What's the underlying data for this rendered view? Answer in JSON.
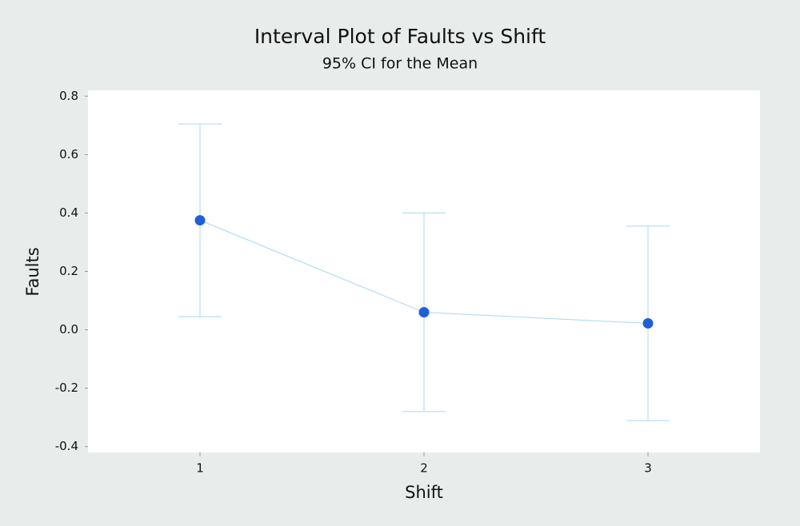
{
  "chart_data": {
    "type": "interval",
    "title": "Interval Plot of Faults vs Shift",
    "subtitle": "95% CI for the Mean",
    "x_label": "Shift",
    "y_label": "Faults",
    "categories": [
      "1",
      "2",
      "3"
    ],
    "values": [
      0.375,
      0.06,
      0.022
    ],
    "errors": [
      0.33,
      0.34,
      0.333
    ],
    "color": "#1f5fd6",
    "line_color": "#a9d8ec",
    "ylim": [
      -0.42,
      0.82
    ],
    "yticks": [
      -0.4,
      -0.2,
      {
        "value": 0,
        "label": "0.0"
      },
      0.2,
      0.4,
      0.6,
      0.8
    ],
    "grid": false
  }
}
